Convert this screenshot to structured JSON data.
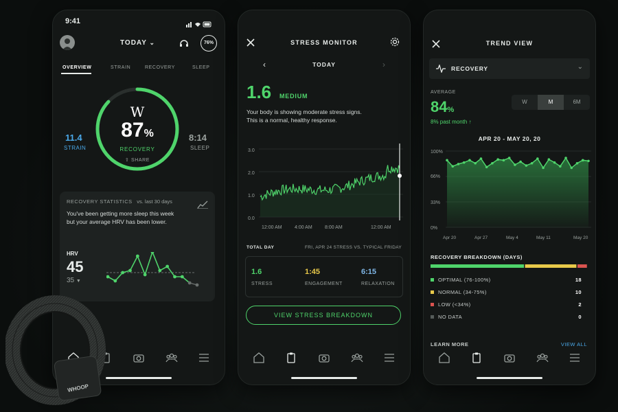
{
  "colors": {
    "accent": "#4fd46b",
    "strain": "#4aa8e8",
    "sleep": "#9aa19e",
    "engagement": "#e8c94a",
    "relaxation": "#7fb6e6",
    "low": "#d9534f"
  },
  "phone1": {
    "status_time": "9:41",
    "header_title": "TODAY",
    "battery_label": "76%",
    "tabs": [
      "OVERVIEW",
      "STRAIN",
      "RECOVERY",
      "SLEEP"
    ],
    "logo": "W",
    "recovery_value": "87",
    "recovery_pct": "%",
    "recovery_fraction": 0.87,
    "recovery_label": "RECOVERY",
    "share_label": "SHARE",
    "strain_value": "11.4",
    "strain_label": "STRAIN",
    "sleep_value": "8:14",
    "sleep_label": "SLEEP",
    "stats_title": "RECOVERY STATISTICS",
    "stats_period": "vs. last 30 days",
    "stats_text": "You've been getting more sleep this week but your average HRV has been lower.",
    "hrv_label": "HRV",
    "hrv_value": "45",
    "hrv_sub": "35",
    "hrv_points": [
      28,
      26,
      30,
      31,
      38,
      29,
      40,
      31,
      33,
      28,
      28,
      25,
      24
    ]
  },
  "phone2": {
    "title": "STRESS MONITOR",
    "date_label": "TODAY",
    "stress_value": "1.6",
    "stress_level": "MEDIUM",
    "description": "Your body is showing moderate stress signs. This is a normal, healthy response.",
    "y_ticks": [
      "3.0",
      "2.0",
      "1.0",
      "0.0"
    ],
    "x_ticks": [
      "12:00 AM",
      "4:00 AM",
      "8:00 AM",
      "12:00 AM"
    ],
    "total_label": "TOTAL DAY",
    "compare_label": "FRI, APR 24  STRESS VS. TYPICAL FRIDAY",
    "stats": [
      {
        "value": "1.6",
        "label": "STRESS"
      },
      {
        "value": "1:45",
        "label": "ENGAGEMENT"
      },
      {
        "value": "6:15",
        "label": "RELAXATION"
      }
    ],
    "button_label": "VIEW STRESS BREAKDOWN"
  },
  "phone3": {
    "title": "TREND VIEW",
    "dropdown_label": "RECOVERY",
    "average_label": "AVERAGE",
    "average_value": "84",
    "average_pct": "%",
    "change_text": "8% past month ↑",
    "ranges": [
      "W",
      "M",
      "6M"
    ],
    "selected_range": "M",
    "date_range": "APR 20 - MAY 20, 20",
    "y_ticks": [
      "100%",
      "66%",
      "33%",
      "0%"
    ],
    "x_ticks": [
      "Apr 20",
      "Apr 27",
      "May 4",
      "May 11",
      "May 20"
    ],
    "trend_points": [
      88,
      80,
      83,
      85,
      88,
      84,
      90,
      79,
      84,
      89,
      88,
      91,
      82,
      86,
      81,
      84,
      90,
      78,
      89,
      85,
      80,
      91,
      78,
      84,
      88,
      87
    ],
    "breakdown_title": "RECOVERY BREAKDOWN (DAYS)",
    "breakdown_bar": [
      18,
      10,
      2,
      0.1
    ],
    "breakdown": [
      {
        "label": "OPTIMAL (76-100%)",
        "value": "18",
        "color": "#4fd46b"
      },
      {
        "label": "NORMAL (34-75%)",
        "value": "10",
        "color": "#e8c94a"
      },
      {
        "label": "LOW (<34%)",
        "value": "2",
        "color": "#d9534f"
      },
      {
        "label": "NO DATA",
        "value": "0",
        "color": "#555b59"
      }
    ],
    "learn_more": "LEARN MORE",
    "view_all": "VIEW ALL"
  },
  "band_brand": "WHOOP"
}
